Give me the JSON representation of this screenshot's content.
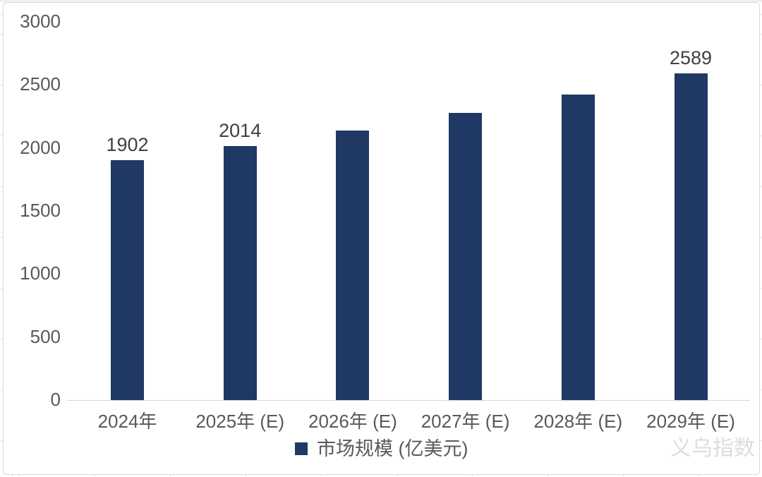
{
  "watermark": "义乌指数",
  "legend": {
    "label": "市场规模 (亿美元)"
  },
  "chart_data": {
    "type": "bar",
    "title": "",
    "categories": [
      "2024年",
      "2025年 (E)",
      "2026年 (E)",
      "2027年 (E)",
      "2028年 (E)",
      "2029年 (E)"
    ],
    "series": [
      {
        "name": "市场规模 (亿美元)",
        "values": [
          1902,
          2014,
          2140,
          2278,
          2424,
          2589
        ]
      }
    ],
    "data_labels": [
      "1902",
      "2014",
      "",
      "",
      "",
      "2589"
    ],
    "ylim": [
      0,
      3000
    ],
    "yticks": [
      0,
      500,
      1000,
      1500,
      2000,
      2500,
      3000
    ],
    "grid": false,
    "legend_position": "bottom",
    "colors": {
      "bar": "#1f3864",
      "axis_label": "#595959",
      "data_label": "#404040",
      "axis_line": "#d9d9d9",
      "chart_border": "#d9d9d9",
      "watermark": "#dcdcdc"
    }
  }
}
